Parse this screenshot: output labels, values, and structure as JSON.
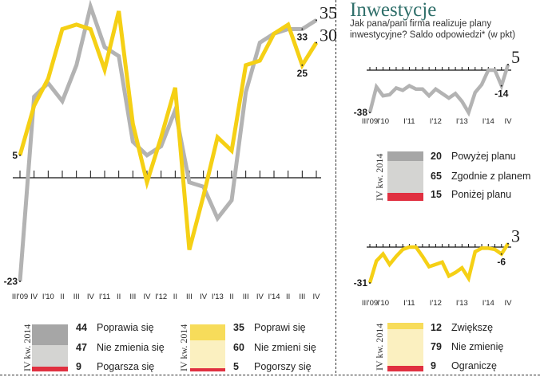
{
  "right_header": {
    "title": "Inwestycje",
    "subtitle": "Jak pana/pani firma realizuje plany inwestycyjne? Saldo odpowiedzi* (w pkt)"
  },
  "colors": {
    "grey": "#b3b3b3",
    "yellow": "#f5d015",
    "red": "#e03040",
    "grey_dark": "#a6a6a6",
    "grey_light": "#d4d4d2",
    "yellow_dark": "#f7dc5a",
    "yellow_light": "#fbf0c0"
  },
  "chart_data": [
    {
      "type": "line",
      "title": "",
      "categories": [
        "III'09",
        "IV",
        "I'10",
        "II",
        "III",
        "IV",
        "I'11",
        "II",
        "III",
        "IV",
        "I'12",
        "II",
        "III",
        "IV",
        "I'13",
        "II",
        "III",
        "IV",
        "I'14",
        "II",
        "III",
        "IV"
      ],
      "ylim": [
        -25,
        38
      ],
      "series": [
        {
          "name": "grey",
          "values": [
            -23,
            18,
            21,
            17,
            25,
            38,
            29,
            27,
            8,
            5,
            7,
            15,
            -1,
            -2,
            -9,
            -5,
            19,
            30,
            32,
            33,
            33,
            35
          ]
        },
        {
          "name": "yellow",
          "values": [
            5,
            16,
            22,
            33,
            34,
            33,
            24,
            37,
            12,
            -1,
            9,
            20,
            -16,
            -4,
            9,
            6,
            25,
            26,
            32,
            34,
            25,
            30
          ]
        }
      ],
      "point_labels": [
        {
          "series": "grey",
          "index": 0,
          "text": "-23"
        },
        {
          "series": "yellow",
          "index": 0,
          "text": "5"
        },
        {
          "series": "grey",
          "index": 20,
          "text": "33"
        },
        {
          "series": "grey",
          "index": 21,
          "text": "35"
        },
        {
          "series": "yellow",
          "index": 20,
          "text": "25"
        },
        {
          "series": "yellow",
          "index": 21,
          "text": "30"
        }
      ]
    },
    {
      "type": "line",
      "title": "Inwestycje",
      "categories": [
        "III'09",
        "",
        "I'10",
        "",
        "",
        "",
        "I'11",
        "",
        "",
        "",
        "I'12",
        "",
        "",
        "",
        "I'13",
        "",
        "",
        "",
        "I'14",
        "",
        "",
        "IV"
      ],
      "ylim": [
        -40,
        6
      ],
      "series": [
        {
          "name": "grey",
          "values": [
            -38,
            -15,
            -23,
            -22,
            -16,
            -18,
            -14,
            -17,
            -17,
            -23,
            -17,
            -21,
            -25,
            -21,
            -28,
            -38,
            -20,
            -13,
            0,
            0,
            -14,
            5
          ]
        }
      ],
      "point_labels": [
        {
          "series": "grey",
          "index": 0,
          "text": "-38"
        },
        {
          "series": "grey",
          "index": 20,
          "text": "-14"
        },
        {
          "series": "grey",
          "index": 21,
          "text": "5"
        }
      ]
    },
    {
      "type": "line",
      "title": "",
      "categories": [
        "III'09",
        "",
        "I'10",
        "",
        "",
        "",
        "I'11",
        "",
        "",
        "",
        "I'12",
        "",
        "",
        "",
        "I'13",
        "",
        "",
        "",
        "I'14",
        "",
        "",
        "IV"
      ],
      "ylim": [
        -33,
        4
      ],
      "series": [
        {
          "name": "yellow",
          "values": [
            -31,
            -12,
            -6,
            -15,
            -8,
            -2,
            0,
            0,
            -8,
            -17,
            -15,
            -13,
            -25,
            -22,
            -18,
            -27,
            -4,
            -1,
            -1,
            -2,
            -6,
            3
          ]
        }
      ],
      "point_labels": [
        {
          "series": "yellow",
          "index": 0,
          "text": "-31"
        },
        {
          "series": "yellow",
          "index": 20,
          "text": "-6"
        },
        {
          "series": "yellow",
          "index": 21,
          "text": "3"
        }
      ]
    }
  ],
  "legends": [
    {
      "period": "IV kw. 2014",
      "items": [
        {
          "value": "44",
          "label": "Poprawia się"
        },
        {
          "value": "47",
          "label": "Nie zmienia się"
        },
        {
          "value": "9",
          "label": "Pogarsza się"
        }
      ]
    },
    {
      "period": "IV kw. 2014",
      "items": [
        {
          "value": "35",
          "label": "Poprawi się"
        },
        {
          "value": "60",
          "label": "Nie zmieni się"
        },
        {
          "value": "5",
          "label": "Pogorszy się"
        }
      ]
    },
    {
      "period": "IV kw. 2014",
      "items": [
        {
          "value": "20",
          "label": "Powyżej planu"
        },
        {
          "value": "65",
          "label": "Zgodnie z planem"
        },
        {
          "value": "15",
          "label": "Poniżej planu"
        }
      ]
    },
    {
      "period": "IV kw. 2014",
      "items": [
        {
          "value": "12",
          "label": "Zwiększę"
        },
        {
          "value": "79",
          "label": "Nie zmienię"
        },
        {
          "value": "9",
          "label": "Ograniczę"
        }
      ]
    }
  ]
}
